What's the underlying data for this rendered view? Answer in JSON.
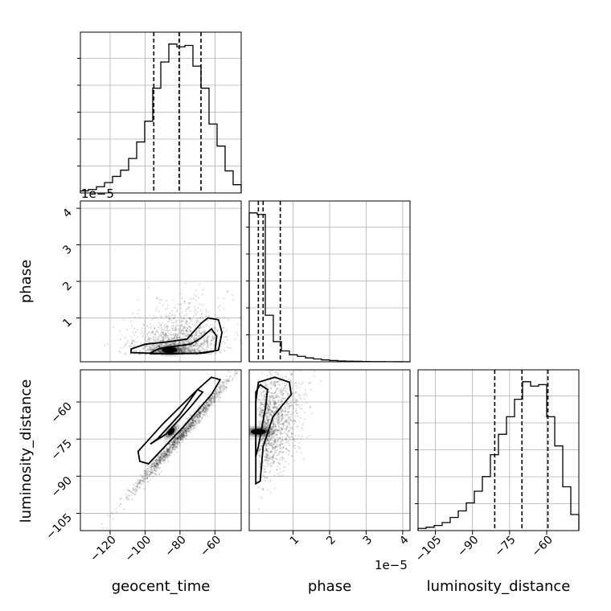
{
  "figure": {
    "type": "corner"
  },
  "chart_data": {
    "type": "corner",
    "parameters": [
      "geocent_time",
      "phase",
      "luminosity_distance"
    ],
    "axes": {
      "geocent_time": {
        "range": [
          -137,
          -45
        ],
        "ticks": [
          -120,
          -100,
          -80,
          -60
        ],
        "tick_labels": [
          "−120",
          "−100",
          "−80",
          "−60"
        ],
        "xlabel": "geocent_time"
      },
      "phase": {
        "range": [
          -0.2,
          4.2
        ],
        "ticks": [
          1,
          2,
          3,
          4
        ],
        "tick_labels": [
          "1",
          "2",
          "3",
          "4"
        ],
        "offset_label": "1e−5",
        "ylabel": "phase",
        "xlabel": "phase"
      },
      "luminosity_distance": {
        "range": [
          -112,
          -47
        ],
        "ticks": [
          -105,
          -90,
          -75,
          -60
        ],
        "tick_labels": [
          "−105",
          "−90",
          "−75",
          "−60"
        ],
        "ylabel": "luminosity_distance",
        "xlabel": "luminosity_distance"
      }
    },
    "histograms": [
      {
        "param": "geocent_time",
        "bin_edges": [
          -137,
          -132.4,
          -127.8,
          -123.2,
          -118.6,
          -114,
          -109.4,
          -104.8,
          -100.2,
          -95.6,
          -91,
          -86.4,
          -81.8,
          -77.2,
          -72.6,
          -68,
          -63.4,
          -58.8,
          -54.2,
          -49.6,
          -45
        ],
        "counts": [
          1.5,
          2.5,
          4.5,
          7.5,
          12,
          16.5,
          25,
          37,
          52,
          76,
          95,
          108,
          106,
          107,
          92,
          76,
          50,
          34,
          16,
          6,
          0
        ],
        "quantiles": [
          -95,
          -80.5,
          -68
        ]
      },
      {
        "param": "phase",
        "bin_edges": [
          -0.2,
          0.02,
          0.24,
          0.46,
          0.68,
          0.9,
          1.12,
          1.34,
          1.56,
          1.78,
          2.0,
          2.22,
          2.44,
          2.66,
          2.88,
          3.1,
          3.32,
          3.54,
          3.76,
          3.98,
          4.2
        ],
        "counts": [
          96,
          95,
          30,
          13,
          7,
          4.5,
          3.5,
          2.5,
          1.8,
          1.2,
          0.8,
          0.5,
          0.4,
          0.3,
          0.2,
          0.1,
          0.1,
          0.05,
          0.03,
          0,
          0
        ],
        "quantiles": [
          0.05,
          0.18,
          0.65
        ]
      },
      {
        "param": "luminosity_distance",
        "bin_edges": [
          -112,
          -108.75,
          -105.5,
          -102.25,
          -99,
          -95.75,
          -92.5,
          -89.25,
          -86,
          -82.75,
          -79.5,
          -76.25,
          -73,
          -69.75,
          -66.5,
          -63.25,
          -60,
          -56.75,
          -53.5,
          -50.25,
          -47
        ],
        "counts": [
          1.5,
          2.3,
          3.5,
          5.5,
          9,
          13.5,
          19,
          27,
          37,
          52,
          66,
          78,
          90,
          102,
          99,
          100,
          78,
          58,
          30,
          11,
          0
        ],
        "quantiles": [
          -81,
          -70,
          -59.5
        ]
      }
    ],
    "pairs": [
      {
        "x": "geocent_time",
        "y": "phase",
        "description": "scatter of posterior samples with 2 contour levels",
        "contour_outer": [
          [
            -108,
            0.15
          ],
          [
            -100,
            0.28
          ],
          [
            -88,
            0.34
          ],
          [
            -76,
            0.42
          ],
          [
            -68,
            0.85
          ],
          [
            -64,
            1.0
          ],
          [
            -58,
            0.95
          ],
          [
            -56,
            0.6
          ],
          [
            -58,
            0.12
          ],
          [
            -66,
            0.04
          ],
          [
            -85,
            0.02
          ],
          [
            -108,
            0.05
          ]
        ],
        "contour_inner": [
          [
            -97,
            0.04
          ],
          [
            -92,
            0.16
          ],
          [
            -84,
            0.22
          ],
          [
            -74,
            0.28
          ],
          [
            -68,
            0.45
          ],
          [
            -62,
            0.7
          ],
          [
            -59,
            0.5
          ],
          [
            -60,
            0.1
          ],
          [
            -70,
            0.03
          ],
          [
            -97,
            0.02
          ]
        ],
        "density_peak": [
          -86,
          0.12
        ]
      },
      {
        "x": "geocent_time",
        "y": "luminosity_distance",
        "description": "narrow linear correlation",
        "contour_outer": [
          [
            -103,
            -84
          ],
          [
            -104,
            -80
          ],
          [
            -90,
            -69
          ],
          [
            -70,
            -55
          ],
          [
            -62,
            -50
          ],
          [
            -57,
            -51
          ],
          [
            -62,
            -57
          ],
          [
            -78,
            -70
          ],
          [
            -98,
            -85
          ]
        ],
        "contour_inner": [
          [
            -97,
            -77
          ],
          [
            -93,
            -75
          ],
          [
            -80,
            -65
          ],
          [
            -70,
            -55
          ],
          [
            -67,
            -56
          ],
          [
            -74,
            -62
          ],
          [
            -88,
            -73
          ]
        ],
        "density_peak": [
          -85,
          -72
        ]
      },
      {
        "x": "phase",
        "y": "luminosity_distance",
        "description": "density concentrated at low phase",
        "contour_outer": [
          [
            -0.02,
            -93
          ],
          [
            0.1,
            -92
          ],
          [
            0.18,
            -78
          ],
          [
            0.45,
            -66
          ],
          [
            0.95,
            -57
          ],
          [
            0.9,
            -52
          ],
          [
            0.5,
            -50
          ],
          [
            0.05,
            -52
          ],
          [
            -0.02,
            -60
          ]
        ],
        "contour_inner": [
          [
            -0.02,
            -82
          ],
          [
            0.05,
            -78
          ],
          [
            0.25,
            -62
          ],
          [
            0.3,
            -55
          ],
          [
            0.1,
            -53
          ],
          [
            -0.02,
            -56
          ]
        ],
        "density_peak": [
          0.05,
          -72
        ]
      }
    ]
  }
}
